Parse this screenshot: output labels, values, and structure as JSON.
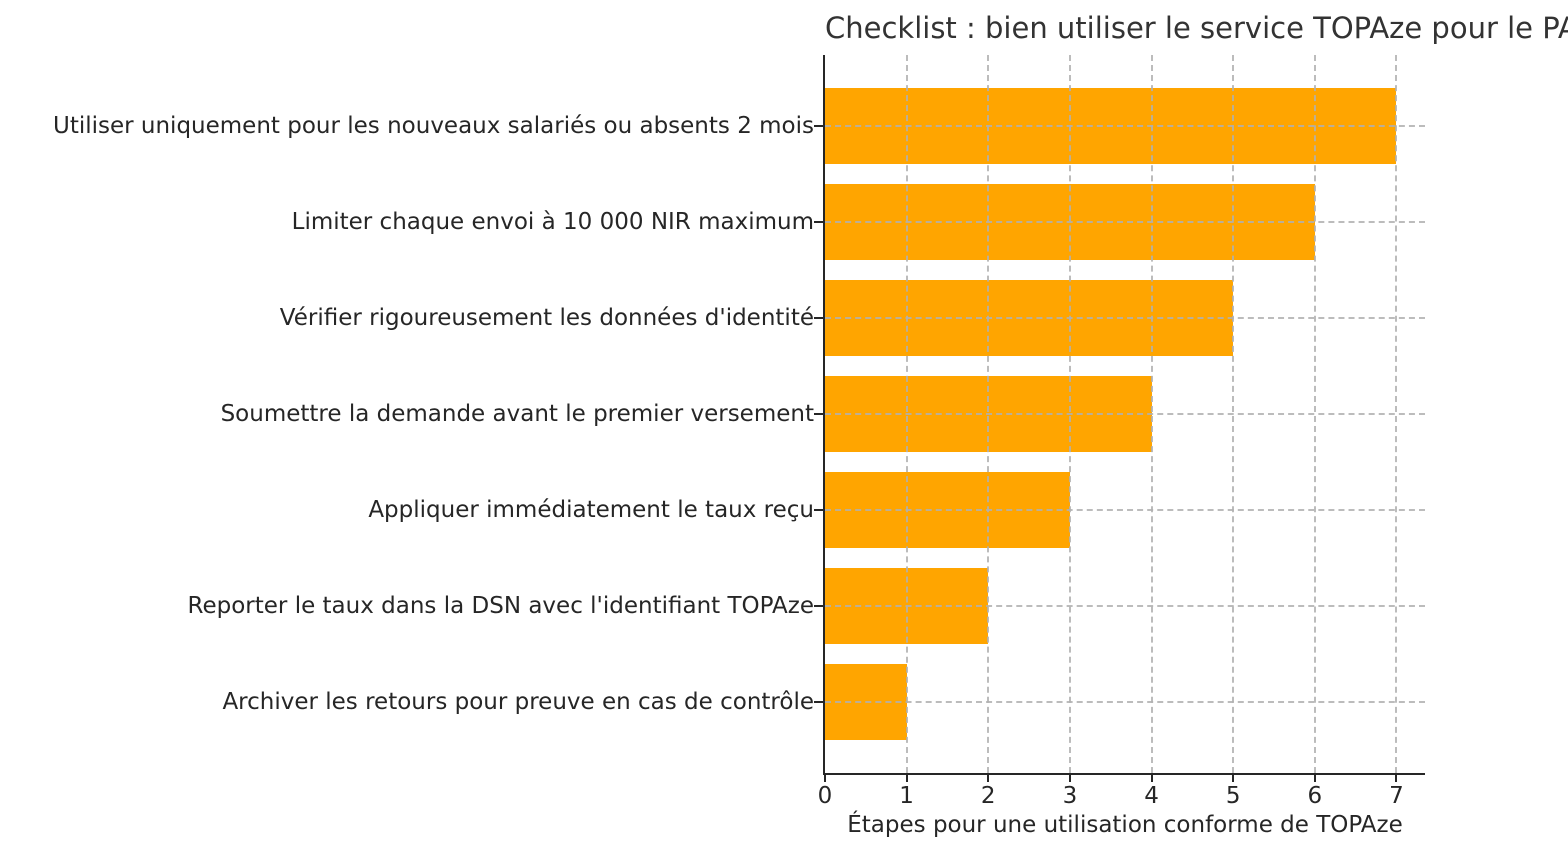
{
  "chart_data": {
    "type": "bar",
    "orientation": "horizontal",
    "title": "Checklist : bien utiliser le service TOPAze pour le PAS",
    "xlabel": "Étapes pour une utilisation conforme de TOPAze",
    "ylabel": "",
    "categories": [
      "Utiliser uniquement pour les nouveaux salariés ou absents 2 mois",
      "Limiter chaque envoi à 10 000 NIR maximum",
      "Vérifier rigoureusement les données d'identité",
      "Soumettre la demande avant le premier versement",
      "Appliquer immédiatement le taux reçu",
      "Reporter le taux dans la DSN avec l'identifiant TOPAze",
      "Archiver les retours pour preuve en cas de contrôle"
    ],
    "values": [
      7,
      6,
      5,
      4,
      3,
      2,
      1
    ],
    "xticks": [
      "0",
      "1",
      "2",
      "3",
      "4",
      "5",
      "6",
      "7"
    ],
    "xlim": [
      0,
      7.35
    ],
    "grid": "dashed",
    "grid_over_bars": true,
    "legend": false,
    "colors": {
      "bar": "#FFA500",
      "grid": "#b0b0b0",
      "spine": "#262626",
      "text": "#262626",
      "title": "#333333"
    }
  }
}
